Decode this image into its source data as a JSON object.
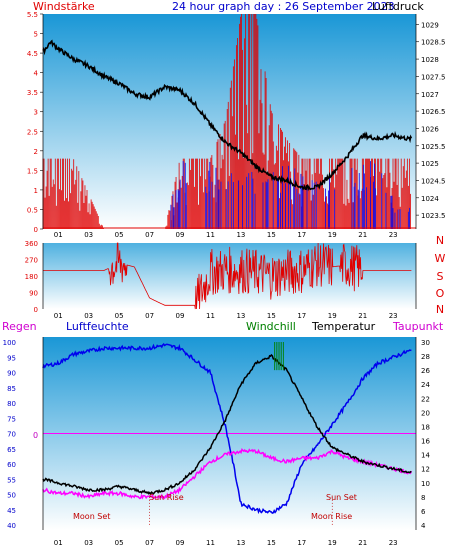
{
  "header": {
    "left_label": "Windstärke",
    "title": "24 hour graph day : 26 September 2023",
    "right_label": "Luftdruck"
  },
  "x_axis": {
    "ticks": [
      "01",
      "03",
      "05",
      "07",
      "09",
      "11",
      "13",
      "15",
      "17",
      "19",
      "21",
      "23"
    ]
  },
  "colors": {
    "red": "#e00000",
    "blue": "#0000ee",
    "black": "#000000",
    "magenta": "#ff00ff",
    "green": "#008000",
    "bg_top": "#1fa0d8",
    "bg_bottom": "#ffffff"
  },
  "panel2_labels": {
    "left_ticks": [
      "360",
      "270",
      "180",
      "90",
      "0"
    ],
    "compass": [
      "N",
      "W",
      "S",
      "O",
      "N"
    ]
  },
  "panel3_labels": {
    "regen": "Regen",
    "luftfeuchte": "Luftfeuchte",
    "windchill": "Windchill",
    "temperatur": "Temperatur",
    "taupunkt": "Taupunkt",
    "rain_zero": "0",
    "sun_rise": "Sun Rise",
    "moon_set": "Moon Set",
    "sun_set": "Sun Set",
    "moon_rise": "Moon Rise"
  },
  "chart_data": [
    {
      "type": "line",
      "name": "wind_and_pressure",
      "y_left": {
        "title": "Windstärke",
        "ticks": [
          0,
          0.5,
          1,
          1.5,
          2,
          2.5,
          3,
          3.5,
          4,
          4.5,
          5,
          5.5
        ],
        "range": [
          0,
          5.5
        ]
      },
      "y_right": {
        "title": "Luftdruck",
        "ticks": [
          1023.5,
          1024,
          1024.5,
          1025,
          1025.5,
          1026,
          1026.5,
          1027,
          1027.5,
          1028,
          1028.5,
          1029
        ],
        "range": [
          1023.1,
          1029.3
        ]
      },
      "x_range_hours": [
        0,
        24.5
      ],
      "pressure": {
        "x": [
          0,
          0.5,
          1,
          2,
          3,
          4,
          5,
          6,
          7,
          8,
          9,
          10,
          11,
          12,
          13,
          14,
          15,
          16,
          17,
          18,
          19,
          20,
          21,
          22,
          23,
          24
        ],
        "y": [
          1028.2,
          1028.5,
          1028.3,
          1028.0,
          1027.8,
          1027.5,
          1027.3,
          1027.0,
          1026.9,
          1027.2,
          1027.1,
          1026.7,
          1026.1,
          1025.6,
          1025.3,
          1024.9,
          1024.6,
          1024.5,
          1024.3,
          1024.3,
          1024.7,
          1025.2,
          1025.8,
          1025.7,
          1025.8,
          1025.7
        ]
      },
      "wind_avg": {
        "x": [
          0,
          2,
          4,
          6,
          8,
          9,
          10,
          11,
          12,
          13,
          14,
          15,
          16,
          17,
          18,
          19,
          20,
          21,
          22,
          23,
          24
        ],
        "y": [
          0,
          0,
          0,
          0,
          0,
          1.8,
          1.8,
          1.8,
          1.8,
          1.8,
          1.8,
          1.8,
          1.8,
          1.8,
          1.8,
          1.8,
          1.8,
          1.8,
          1.8,
          0.8,
          0.8
        ]
      },
      "wind_gust": {
        "x": [
          0,
          2,
          4,
          6,
          8,
          9,
          10,
          11,
          12,
          13,
          14,
          15,
          16,
          17,
          18,
          19,
          20,
          21,
          22,
          23,
          24
        ],
        "y": [
          1.8,
          1.8,
          0,
          0,
          0,
          1.8,
          1.8,
          1.8,
          2.8,
          5.5,
          5.5,
          3.0,
          2.3,
          1.8,
          1.8,
          1.8,
          1.8,
          1.8,
          1.8,
          1.8,
          1.8
        ]
      }
    },
    {
      "type": "line",
      "name": "wind_direction",
      "y_left": {
        "ticks": [
          0,
          90,
          180,
          270,
          360
        ],
        "range": [
          0,
          360
        ]
      },
      "direction": {
        "x": [
          0,
          1,
          2,
          3,
          4,
          5,
          6,
          7,
          8,
          9,
          10,
          11,
          12,
          13,
          14,
          15,
          16,
          17,
          18,
          19,
          20,
          21,
          22,
          23,
          24
        ],
        "y": [
          210,
          210,
          210,
          210,
          210,
          250,
          230,
          60,
          20,
          20,
          20,
          200,
          210,
          210,
          200,
          180,
          200,
          210,
          250,
          230,
          240,
          210,
          210,
          210,
          210
        ]
      }
    },
    {
      "type": "line",
      "name": "humidity_temperature",
      "y_left": {
        "title": "Luftfeuchte",
        "ticks": [
          40,
          45,
          50,
          55,
          60,
          65,
          70,
          75,
          80,
          85,
          90,
          95,
          100
        ],
        "range": [
          40,
          100
        ]
      },
      "y_right": {
        "title": "Temperatur",
        "ticks": [
          4,
          6,
          8,
          10,
          12,
          14,
          16,
          18,
          20,
          22,
          24,
          26,
          28,
          30
        ],
        "range": [
          4,
          30
        ]
      },
      "humidity": {
        "x": [
          0,
          1,
          2,
          3,
          4,
          5,
          6,
          7,
          8,
          9,
          10,
          11,
          12,
          12.5,
          13,
          14,
          15,
          16,
          17,
          18,
          19,
          20,
          21,
          22,
          23,
          24
        ],
        "y": [
          92,
          93,
          96,
          97,
          98,
          98,
          98,
          98,
          99,
          98,
          94,
          90,
          72,
          60,
          47,
          45,
          44,
          47,
          60,
          66,
          73,
          80,
          88,
          93,
          95,
          97
        ]
      },
      "temperature": {
        "x": [
          0,
          1,
          2,
          3,
          4,
          5,
          6,
          7,
          8,
          9,
          10,
          11,
          12,
          13,
          14,
          15,
          15.5,
          16,
          17,
          18,
          19,
          20,
          21,
          22,
          23,
          24
        ],
        "y": [
          10.5,
          10,
          9.5,
          9,
          9,
          9.5,
          9,
          8.5,
          9,
          10,
          12,
          15,
          19,
          24,
          27,
          28,
          27,
          26,
          22,
          18,
          15,
          14,
          13,
          12.5,
          12,
          11.5
        ]
      },
      "dew_point": {
        "x": [
          0,
          1,
          2,
          3,
          4,
          5,
          6,
          7,
          8,
          9,
          10,
          11,
          12,
          13,
          14,
          15,
          16,
          17,
          18,
          19,
          20,
          21,
          22,
          23,
          24
        ],
        "y": [
          9,
          8.5,
          8.5,
          8,
          8.5,
          8.5,
          8,
          8,
          8,
          9,
          11,
          13,
          14,
          14.5,
          14.5,
          13.5,
          13,
          13.5,
          13.5,
          14.5,
          13.5,
          13,
          12.5,
          12,
          11.5
        ]
      }
    }
  ]
}
